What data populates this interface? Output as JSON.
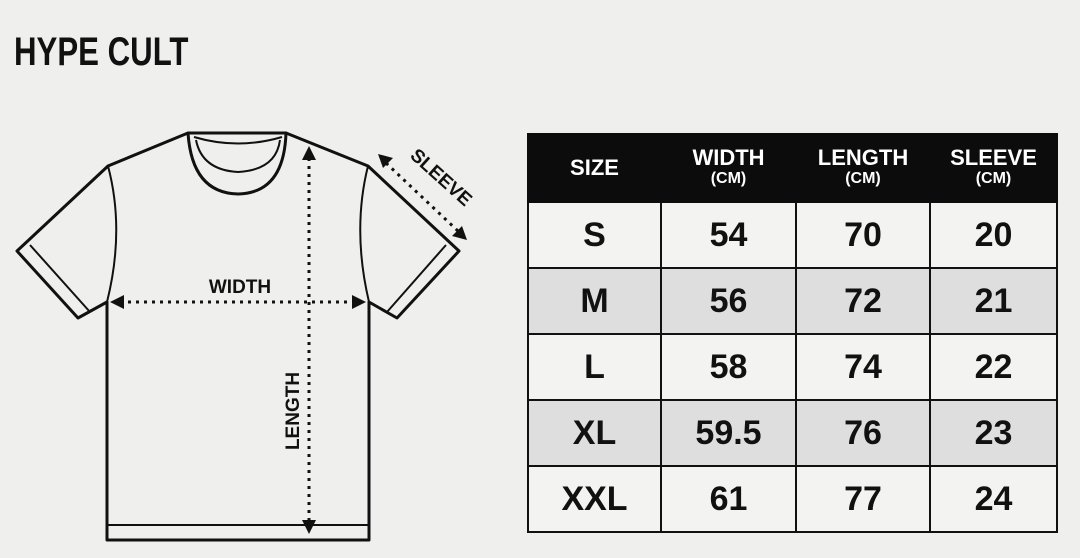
{
  "brand": "HYPE CULT",
  "diagram": {
    "width_label": "WIDTH",
    "length_label": "LENGTH",
    "sleeve_label": "SLEEVE"
  },
  "table": {
    "headers": [
      {
        "label": "SIZE",
        "unit": ""
      },
      {
        "label": "WIDTH",
        "unit": "(CM)"
      },
      {
        "label": "LENGTH",
        "unit": "(CM)"
      },
      {
        "label": "SLEEVE",
        "unit": "(CM)"
      }
    ],
    "rows": [
      [
        "S",
        "54",
        "70",
        "20"
      ],
      [
        "M",
        "56",
        "72",
        "21"
      ],
      [
        "L",
        "58",
        "74",
        "22"
      ],
      [
        "XL",
        "59.5",
        "76",
        "23"
      ],
      [
        "XXL",
        "61",
        "77",
        "24"
      ]
    ]
  },
  "colors": {
    "background": "#efefee",
    "header": "#0c0c0c",
    "row_alt": "#dedede",
    "row": "#f3f3f2"
  }
}
